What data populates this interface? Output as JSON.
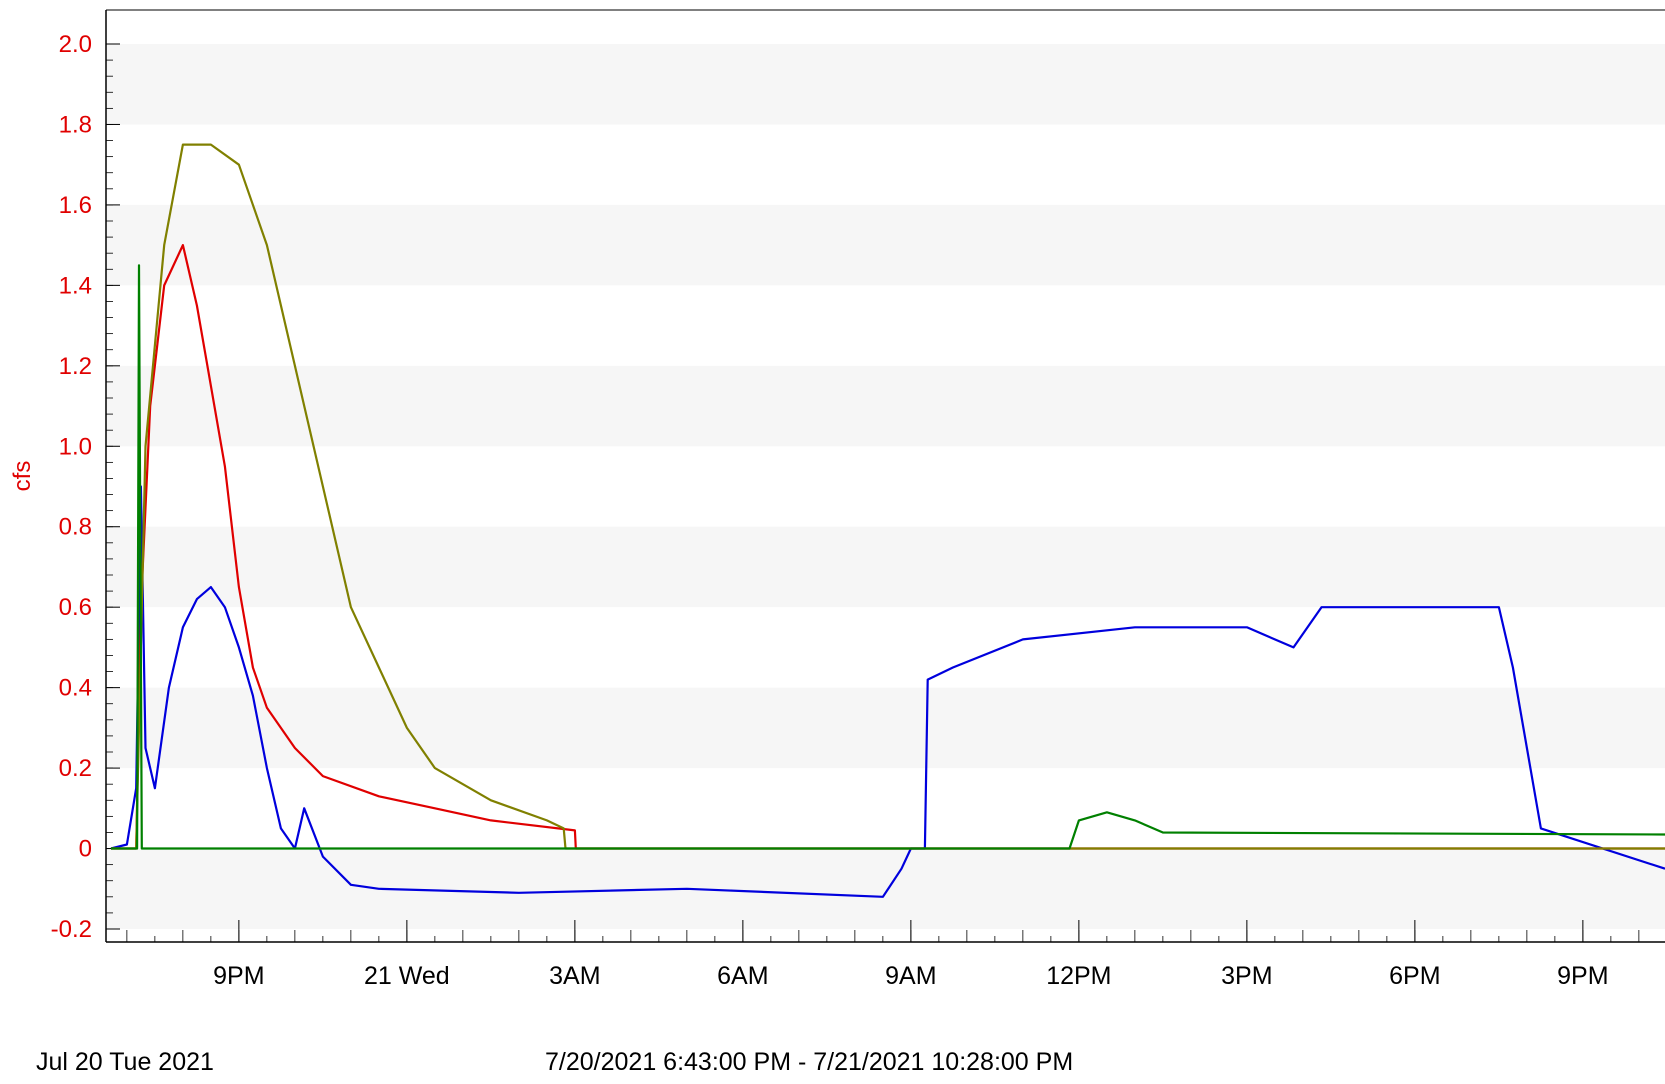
{
  "chart_data": {
    "type": "line",
    "ylabel": "cfs",
    "ylim": [
      -0.2,
      2.0
    ],
    "yticks": [
      "-0.2",
      "0",
      "0.2",
      "0.4",
      "0.6",
      "0.8",
      "1.0",
      "1.2",
      "1.4",
      "1.6",
      "1.8",
      "2.0"
    ],
    "xlim": [
      "2021-07-20 18:43",
      "2021-07-21 22:28"
    ],
    "xticks": [
      {
        "t": "2021-07-20 21:00",
        "label": "9PM"
      },
      {
        "t": "2021-07-21 00:00",
        "label": "21 Wed"
      },
      {
        "t": "2021-07-21 03:00",
        "label": "3AM"
      },
      {
        "t": "2021-07-21 06:00",
        "label": "6AM"
      },
      {
        "t": "2021-07-21 09:00",
        "label": "9AM"
      },
      {
        "t": "2021-07-21 12:00",
        "label": "12PM"
      },
      {
        "t": "2021-07-21 15:00",
        "label": "3PM"
      },
      {
        "t": "2021-07-21 18:00",
        "label": "6PM"
      },
      {
        "t": "2021-07-21 21:00",
        "label": "9PM"
      }
    ],
    "date_label": "Jul 20 Tue 2021",
    "range_label": "7/20/2021 6:43:00 PM - 7/21/2021 10:28:00 PM",
    "grid": "alternating horizontal bands",
    "series": [
      {
        "color": "#0000dd",
        "points": [
          [
            "2021-07-20 18:43",
            0.0
          ],
          [
            "2021-07-20 19:00",
            0.01
          ],
          [
            "2021-07-20 19:10",
            0.15
          ],
          [
            "2021-07-20 19:15",
            0.9
          ],
          [
            "2021-07-20 19:20",
            0.25
          ],
          [
            "2021-07-20 19:30",
            0.15
          ],
          [
            "2021-07-20 19:45",
            0.4
          ],
          [
            "2021-07-20 20:00",
            0.55
          ],
          [
            "2021-07-20 20:15",
            0.62
          ],
          [
            "2021-07-20 20:30",
            0.65
          ],
          [
            "2021-07-20 20:45",
            0.6
          ],
          [
            "2021-07-20 21:00",
            0.5
          ],
          [
            "2021-07-20 21:15",
            0.38
          ],
          [
            "2021-07-20 21:30",
            0.2
          ],
          [
            "2021-07-20 21:45",
            0.05
          ],
          [
            "2021-07-20 22:00",
            0.0
          ],
          [
            "2021-07-20 22:10",
            0.1
          ],
          [
            "2021-07-20 22:30",
            -0.02
          ],
          [
            "2021-07-20 23:00",
            -0.09
          ],
          [
            "2021-07-20 23:30",
            -0.1
          ],
          [
            "2021-07-21 02:00",
            -0.11
          ],
          [
            "2021-07-21 05:00",
            -0.1
          ],
          [
            "2021-07-21 08:30",
            -0.12
          ],
          [
            "2021-07-21 08:50",
            -0.05
          ],
          [
            "2021-07-21 09:00",
            0.0
          ],
          [
            "2021-07-21 09:15",
            0.0
          ],
          [
            "2021-07-21 09:18",
            0.42
          ],
          [
            "2021-07-21 09:45",
            0.45
          ],
          [
            "2021-07-21 11:00",
            0.52
          ],
          [
            "2021-07-21 13:00",
            0.55
          ],
          [
            "2021-07-21 15:00",
            0.55
          ],
          [
            "2021-07-21 15:50",
            0.5
          ],
          [
            "2021-07-21 16:20",
            0.6
          ],
          [
            "2021-07-21 19:30",
            0.6
          ],
          [
            "2021-07-21 19:45",
            0.45
          ],
          [
            "2021-07-21 20:00",
            0.25
          ],
          [
            "2021-07-21 20:15",
            0.05
          ],
          [
            "2021-07-21 22:28",
            -0.05
          ]
        ]
      },
      {
        "color": "#e00000",
        "points": [
          [
            "2021-07-20 18:43",
            0.0
          ],
          [
            "2021-07-20 19:10",
            0.0
          ],
          [
            "2021-07-20 19:15",
            0.6
          ],
          [
            "2021-07-20 19:25",
            1.1
          ],
          [
            "2021-07-20 19:40",
            1.4
          ],
          [
            "2021-07-20 20:00",
            1.5
          ],
          [
            "2021-07-20 20:15",
            1.35
          ],
          [
            "2021-07-20 20:30",
            1.15
          ],
          [
            "2021-07-20 20:45",
            0.95
          ],
          [
            "2021-07-20 21:00",
            0.65
          ],
          [
            "2021-07-20 21:15",
            0.45
          ],
          [
            "2021-07-20 21:30",
            0.35
          ],
          [
            "2021-07-20 22:00",
            0.25
          ],
          [
            "2021-07-20 22:30",
            0.18
          ],
          [
            "2021-07-20 23:30",
            0.13
          ],
          [
            "2021-07-21 00:30",
            0.1
          ],
          [
            "2021-07-21 01:30",
            0.07
          ],
          [
            "2021-07-21 03:00",
            0.045
          ],
          [
            "2021-07-21 03:01",
            0.0
          ],
          [
            "2021-07-21 22:28",
            0.0
          ]
        ]
      },
      {
        "color": "#808000",
        "points": [
          [
            "2021-07-20 18:43",
            0.0
          ],
          [
            "2021-07-20 19:10",
            0.0
          ],
          [
            "2021-07-20 19:20",
            1.0
          ],
          [
            "2021-07-20 19:40",
            1.5
          ],
          [
            "2021-07-20 20:00",
            1.75
          ],
          [
            "2021-07-20 20:30",
            1.75
          ],
          [
            "2021-07-20 21:00",
            1.7
          ],
          [
            "2021-07-20 21:30",
            1.5
          ],
          [
            "2021-07-20 22:00",
            1.2
          ],
          [
            "2021-07-20 22:30",
            0.9
          ],
          [
            "2021-07-20 23:00",
            0.6
          ],
          [
            "2021-07-20 23:30",
            0.45
          ],
          [
            "2021-07-21 00:00",
            0.3
          ],
          [
            "2021-07-21 00:30",
            0.2
          ],
          [
            "2021-07-21 01:30",
            0.12
          ],
          [
            "2021-07-21 02:30",
            0.07
          ],
          [
            "2021-07-21 02:48",
            0.05
          ],
          [
            "2021-07-21 02:50",
            0.0
          ],
          [
            "2021-07-21 22:28",
            0.0
          ]
        ]
      },
      {
        "color": "#008000",
        "points": [
          [
            "2021-07-20 18:43",
            0.0
          ],
          [
            "2021-07-20 19:11",
            0.0
          ],
          [
            "2021-07-20 19:13",
            1.45
          ],
          [
            "2021-07-20 19:16",
            0.0
          ],
          [
            "2021-07-21 11:50",
            0.0
          ],
          [
            "2021-07-21 12:00",
            0.07
          ],
          [
            "2021-07-21 12:30",
            0.09
          ],
          [
            "2021-07-21 13:00",
            0.07
          ],
          [
            "2021-07-21 13:30",
            0.04
          ],
          [
            "2021-07-21 22:28",
            0.035
          ]
        ]
      }
    ]
  }
}
